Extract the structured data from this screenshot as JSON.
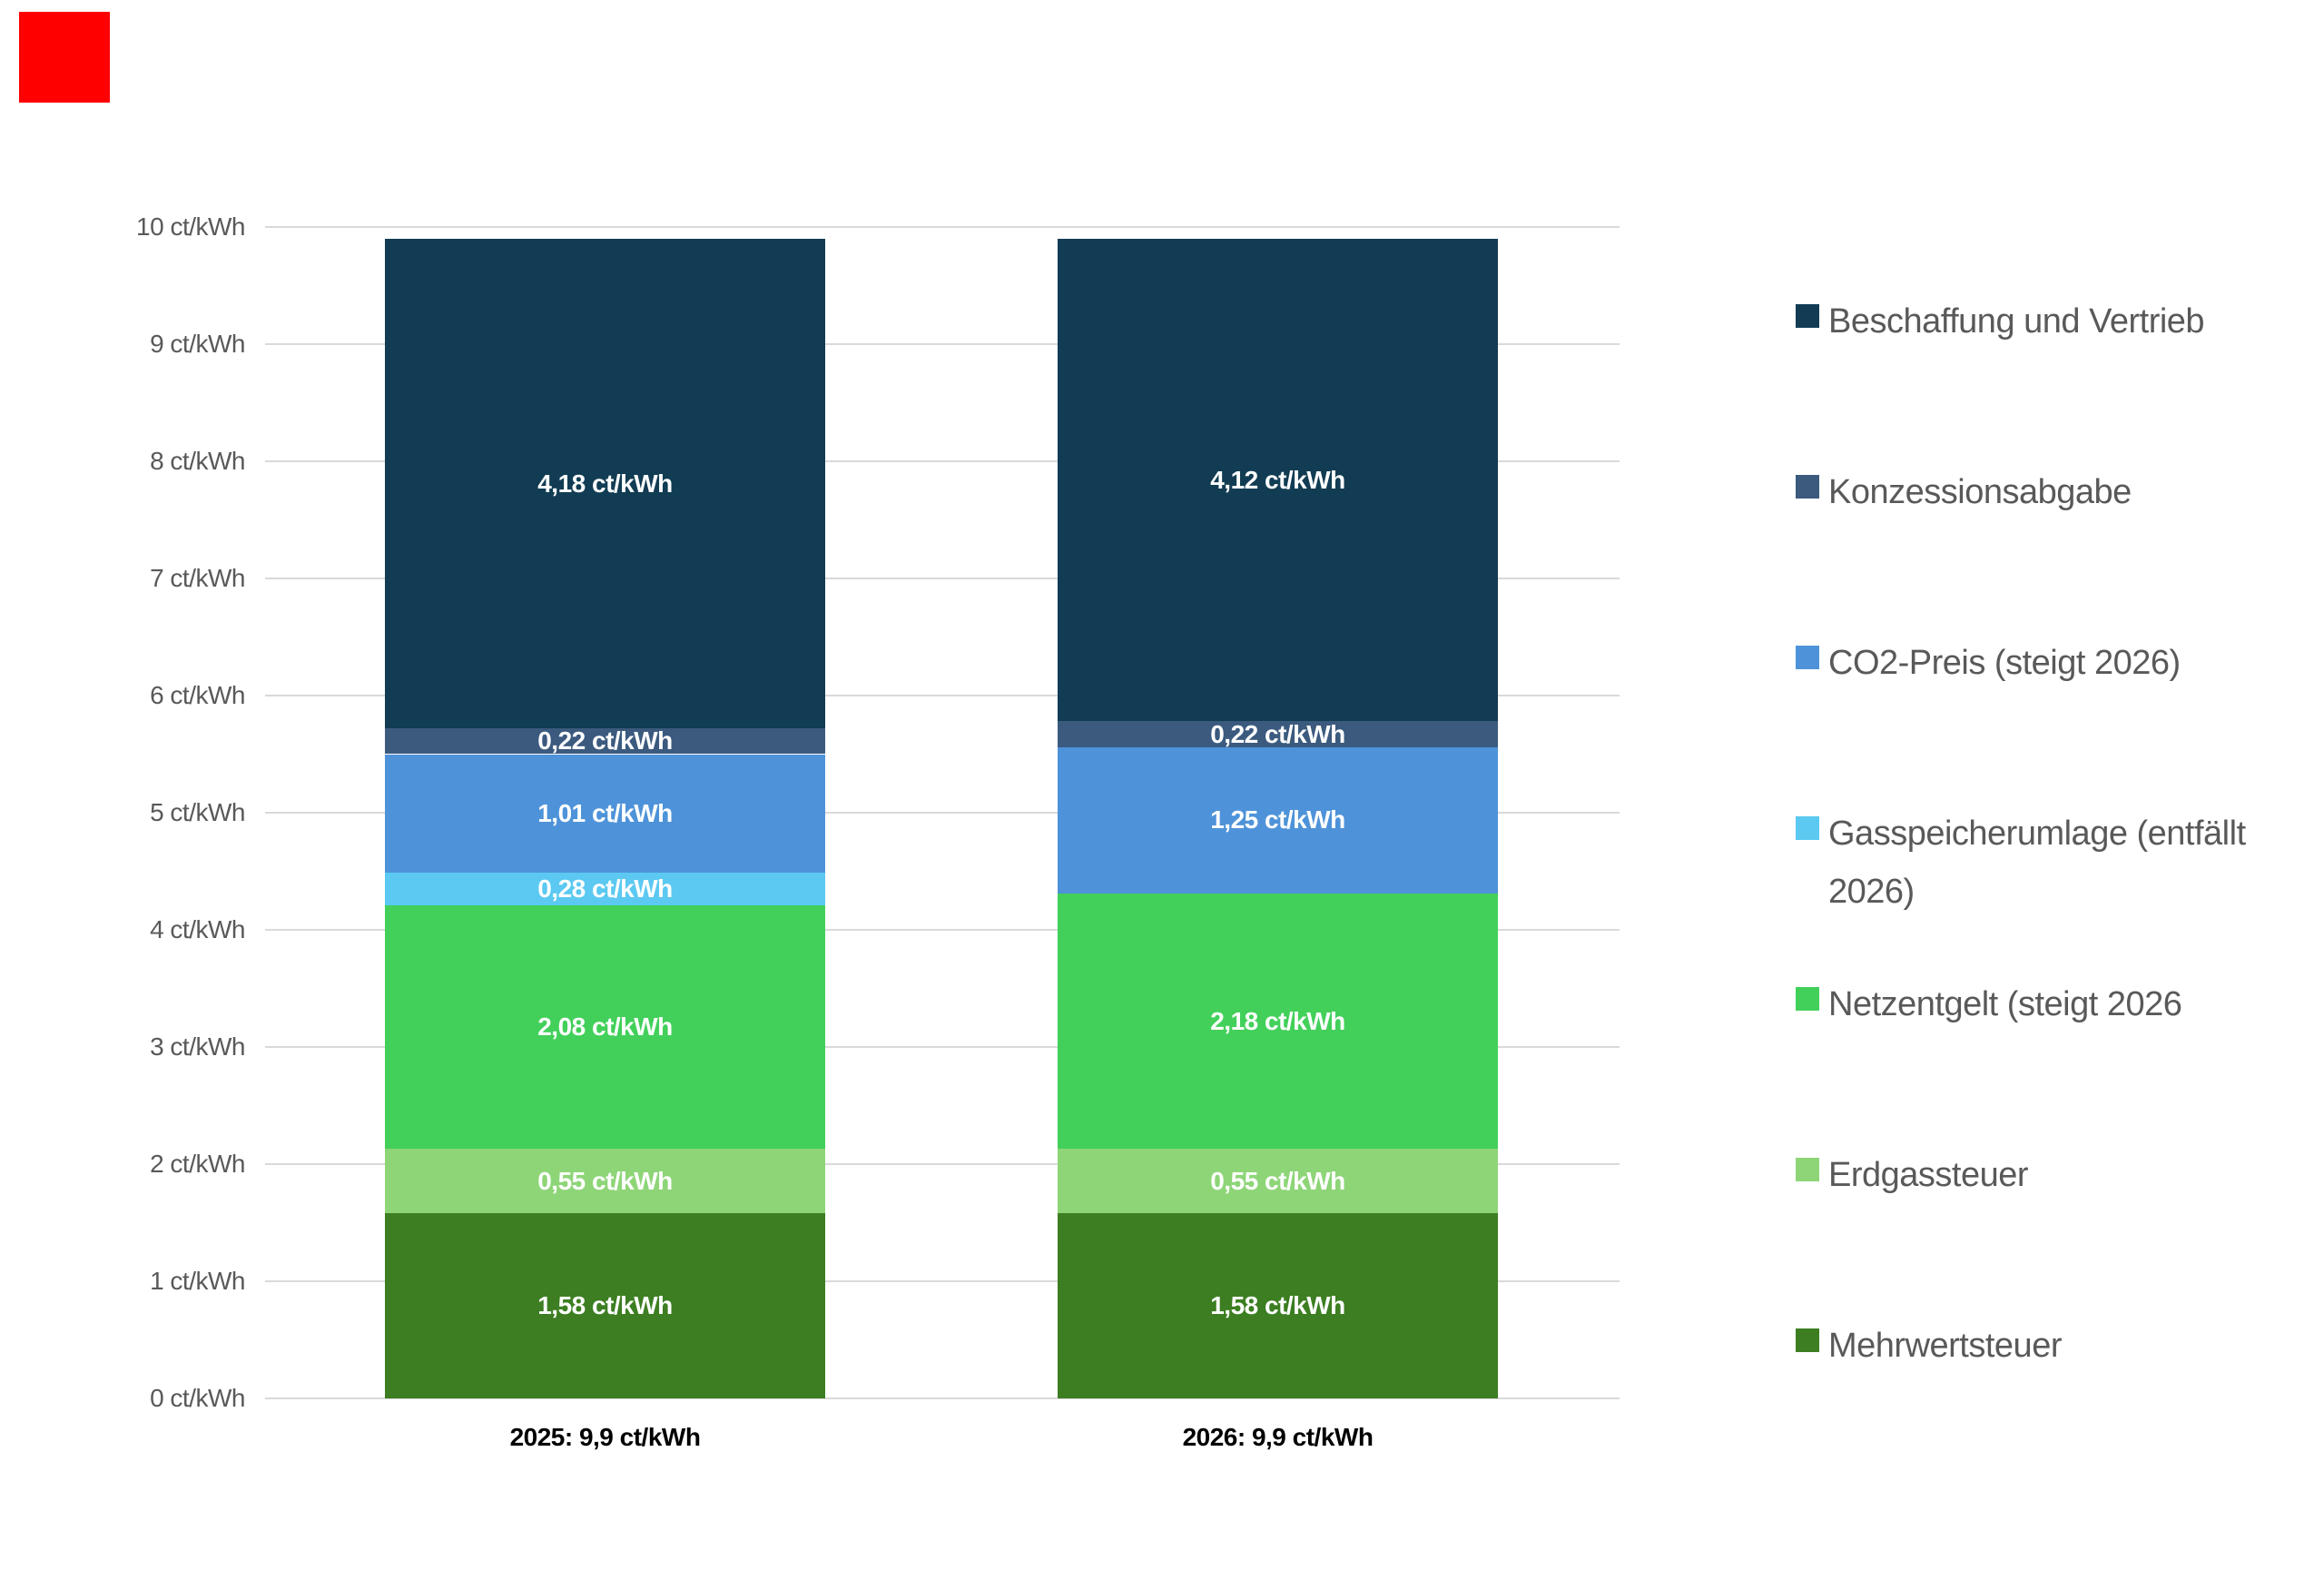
{
  "decorations": {
    "red_marker_color": "#FF0000"
  },
  "colors": {
    "gridline": "#D9D9D9",
    "axis_text": "#595959",
    "legend_text": "#595959",
    "bar_label_text": "#FFFFFF",
    "x_label_text": "#000000",
    "background": "#FFFFFF"
  },
  "chart_data": {
    "type": "bar",
    "stacked": true,
    "title": "",
    "xlabel": "",
    "ylabel": "",
    "ylim": [
      0,
      10
    ],
    "grid": true,
    "legend_position": "right",
    "categories": [
      "2025: 9,9 ct/kWh",
      "2026: 9,9 ct/kWh"
    ],
    "category_totals": [
      "9,9 ct/kWh",
      "9,9 ct/kWh"
    ],
    "y_tick_labels": [
      "0 ct/kWh",
      "1 ct/kWh",
      "2 ct/kWh",
      "3 ct/kWh",
      "4 ct/kWh",
      "5 ct/kWh",
      "6 ct/kWh",
      "7 ct/kWh",
      "8 ct/kWh",
      "9 ct/kWh",
      "10 ct/kWh"
    ],
    "series": [
      {
        "name": "Mehrwertsteuer",
        "color": "#3C7E21",
        "values": [
          1.58,
          1.58
        ],
        "labels": [
          "1,58 ct/kWh",
          "1,58 ct/kWh"
        ]
      },
      {
        "name": "Erdgassteuer",
        "color": "#8ED578",
        "values": [
          0.55,
          0.55
        ],
        "labels": [
          "0,55 ct/kWh",
          "0,55 ct/kWh"
        ]
      },
      {
        "name": "Netzentgelt (steigt 2026",
        "color": "#42D05A",
        "values": [
          2.08,
          2.18
        ],
        "labels": [
          "2,08 ct/kWh",
          "2,18 ct/kWh"
        ]
      },
      {
        "name": "Gasspeicherumlage (entfällt 2026)",
        "color": "#5BC9F1",
        "values": [
          0.28,
          0.0
        ],
        "labels": [
          "0,28 ct/kWh",
          ""
        ]
      },
      {
        "name": "CO2-Preis (steigt 2026)",
        "color": "#4E93D9",
        "values": [
          1.01,
          1.25
        ],
        "labels": [
          "1,01 ct/kWh",
          "1,25 ct/kWh"
        ]
      },
      {
        "name": "Konzessionsabgabe",
        "color": "#3B5A7E",
        "values": [
          0.22,
          0.22
        ],
        "labels": [
          "0,22 ct/kWh",
          "0,22 ct/kWh"
        ]
      },
      {
        "name": "Beschaffung und Vertrieb",
        "color": "#113C53",
        "values": [
          4.18,
          4.12
        ],
        "labels": [
          "4,18 ct/kWh",
          "4,12 ct/kWh"
        ]
      }
    ]
  },
  "legend": {
    "items": [
      {
        "label": "Beschaffung und Vertrieb",
        "color": "#113C53"
      },
      {
        "label": "Konzessionsabgabe",
        "color": "#3B5A7E"
      },
      {
        "label": "CO2-Preis (steigt 2026)",
        "color": "#4E93D9"
      },
      {
        "label": "Gasspeicherumlage (entfällt 2026)",
        "color": "#5BC9F1"
      },
      {
        "label": "Netzentgelt (steigt 2026",
        "color": "#42D05A"
      },
      {
        "label": "Erdgassteuer",
        "color": "#8ED578"
      },
      {
        "label": "Mehrwertsteuer",
        "color": "#3C7E21"
      }
    ]
  }
}
